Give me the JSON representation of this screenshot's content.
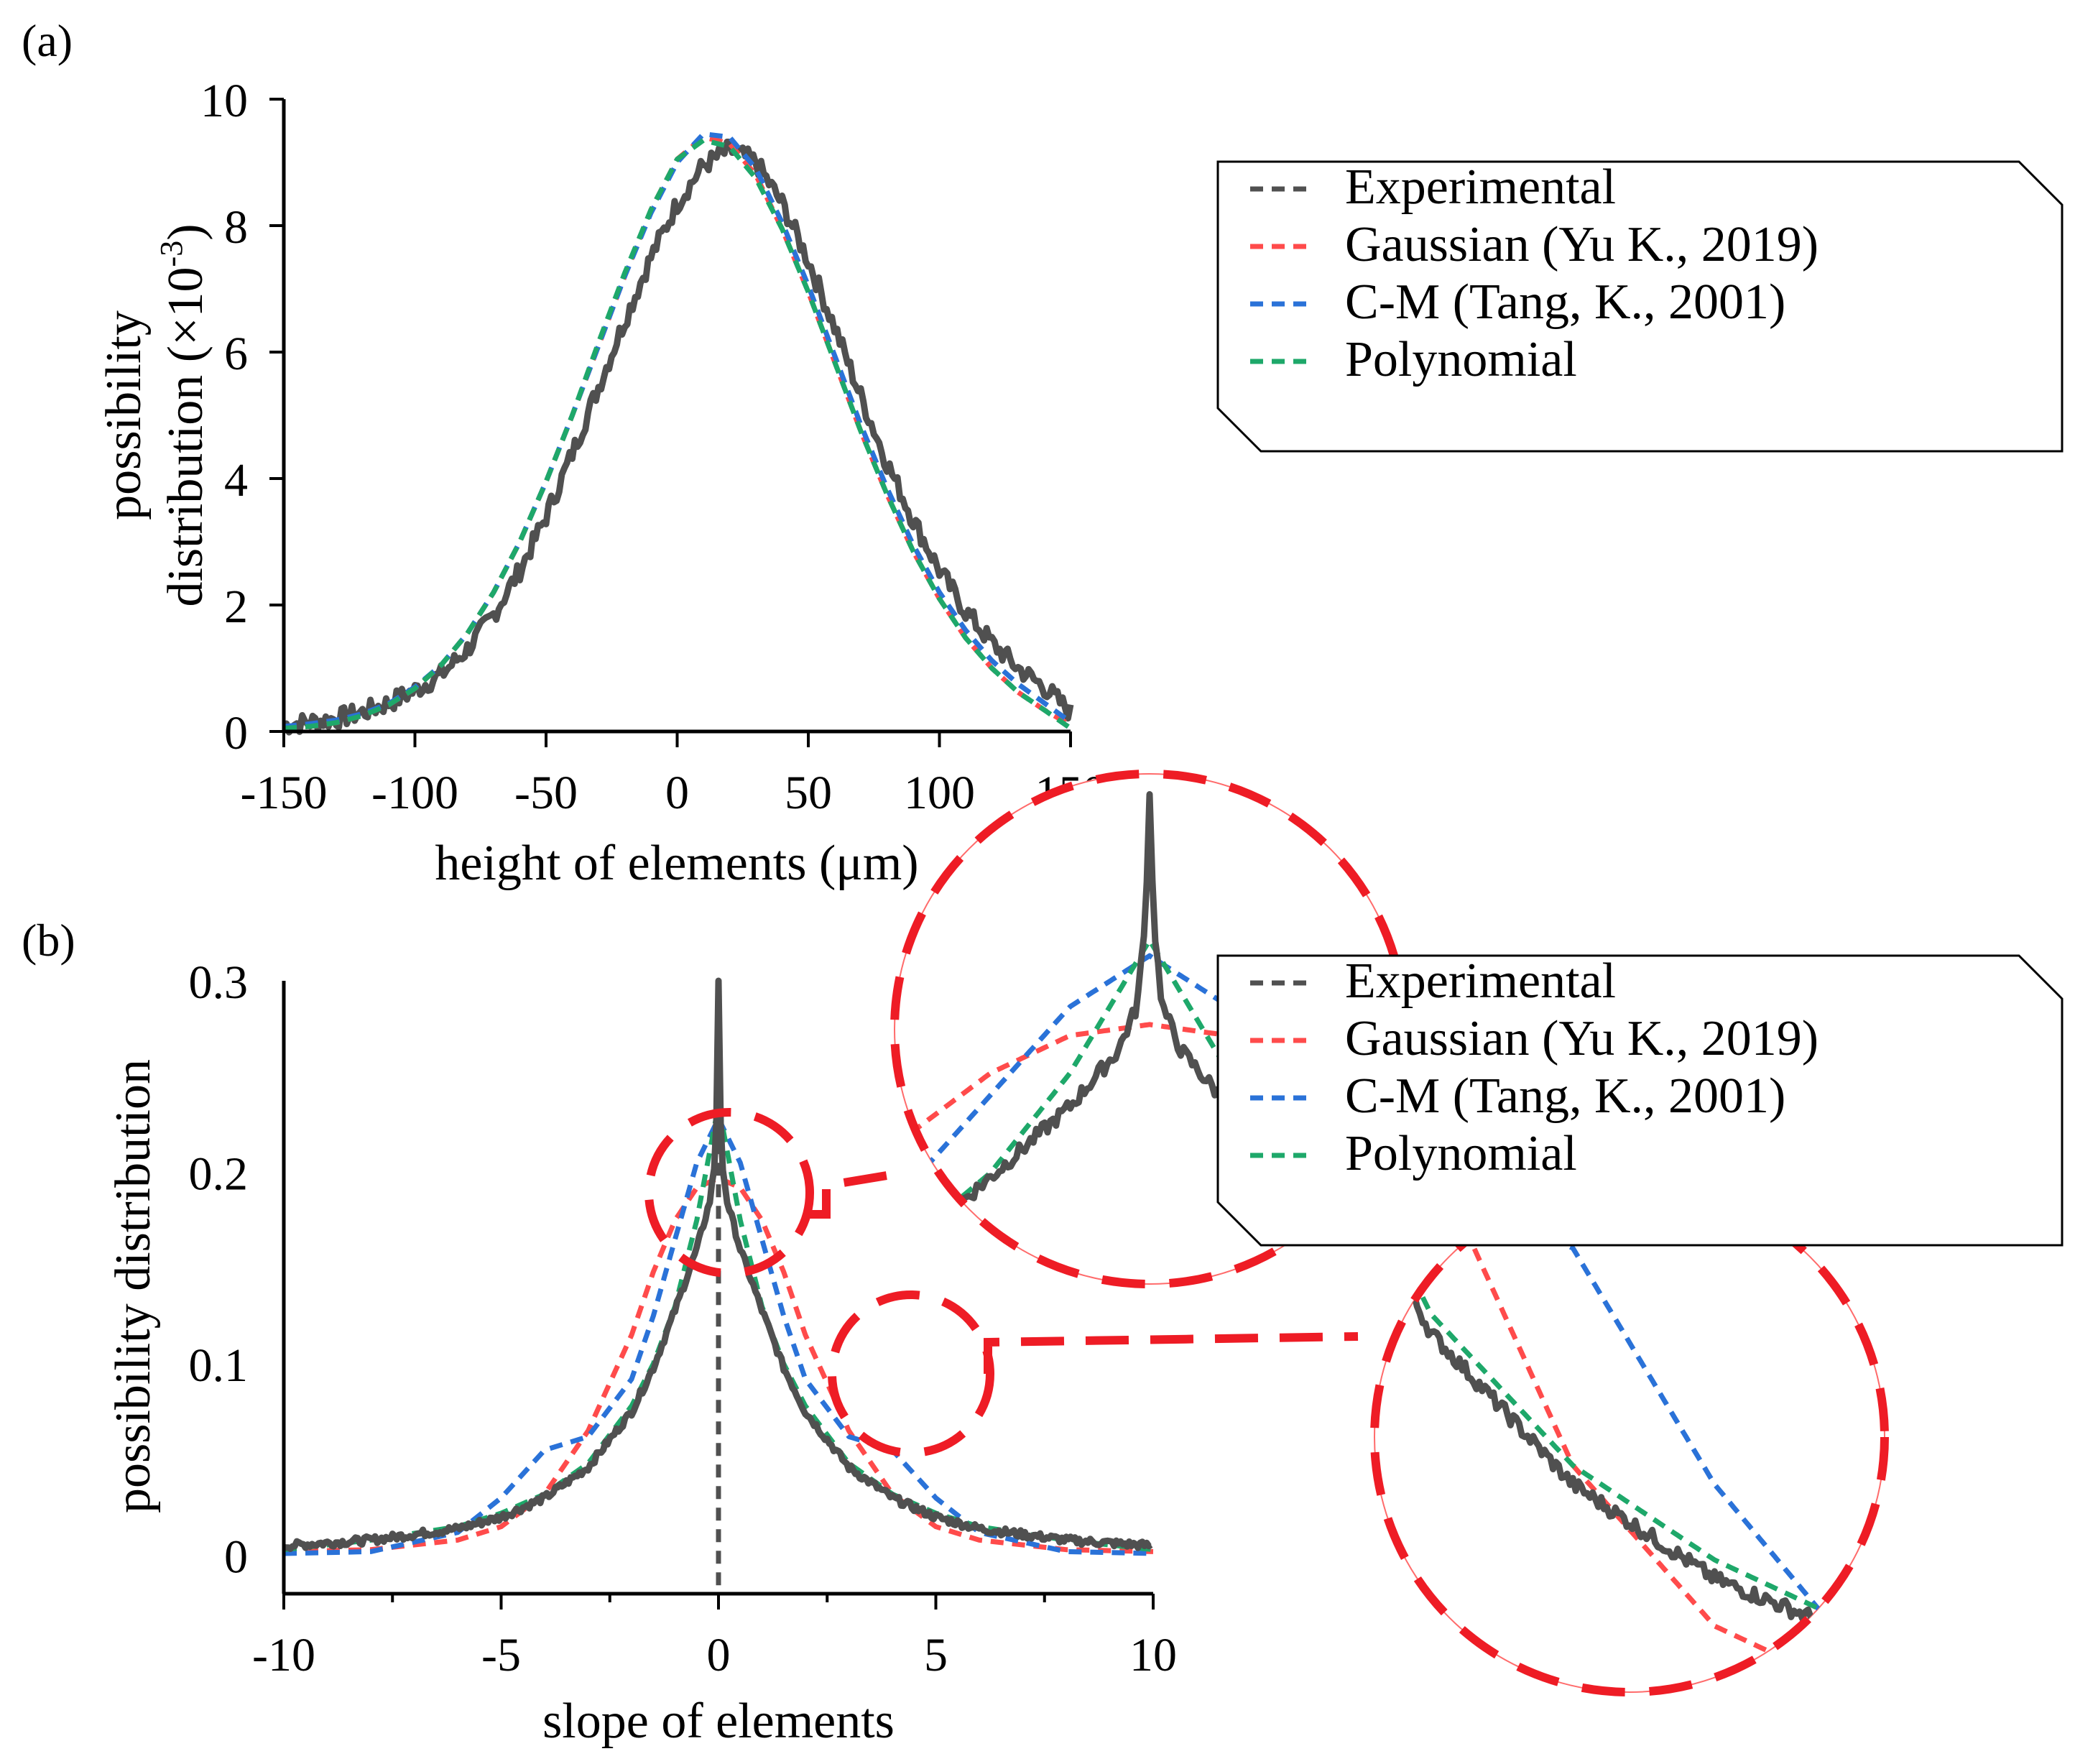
{
  "colors": {
    "Experimental": "#505050",
    "Gaussian": "#ff4b4b",
    "C-M": "#2a72d8",
    "Polynomial": "#1ea86a",
    "zoom": "#ee1c25"
  },
  "legend": [
    {
      "name": "Experimental",
      "label": "Experimental",
      "key": "Experimental"
    },
    {
      "name": "Gaussian",
      "label": "Gaussian (Yu K., 2019)",
      "key": "Gaussian"
    },
    {
      "name": "C-M",
      "label": "C-M (Tang, K., 2001)",
      "key": "C-M"
    },
    {
      "name": "Polynomial",
      "label": "Polynomial",
      "key": "Polynomial"
    }
  ],
  "chart_data": [
    {
      "panel": "(a)",
      "type": "line",
      "xlabel": "height of elements (μm)",
      "ylabel_line1": "possibility",
      "ylabel_line2": "distribution (×10",
      "ylabel_exp": "-3",
      "ylabel_close": ")",
      "xlim": [
        -150,
        150
      ],
      "ylim": [
        0,
        10
      ],
      "xticks": [
        -150,
        -100,
        -50,
        0,
        50,
        100,
        150
      ],
      "yticks": [
        0,
        2,
        4,
        6,
        8,
        10
      ],
      "x_step": 10,
      "x_start": -150,
      "series": [
        {
          "name": "Experimental",
          "values": [
            0.1,
            0.15,
            0.2,
            0.3,
            0.45,
            0.65,
            0.9,
            1.3,
            1.85,
            2.55,
            3.4,
            4.4,
            5.45,
            6.5,
            7.5,
            8.35,
            8.95,
            9.2,
            9.0,
            8.35,
            7.45,
            6.4,
            5.3,
            4.25,
            3.35,
            2.55,
            1.9,
            1.4,
            1.0,
            0.7,
            0.3
          ]
        },
        {
          "name": "Gaussian",
          "values": [
            0.05,
            0.08,
            0.14,
            0.25,
            0.42,
            0.68,
            1.05,
            1.55,
            2.2,
            3.0,
            3.95,
            5.0,
            6.1,
            7.2,
            8.25,
            9.05,
            9.4,
            9.3,
            8.8,
            7.95,
            6.95,
            5.85,
            4.75,
            3.75,
            2.85,
            2.1,
            1.48,
            1.0,
            0.62,
            0.34,
            0.1
          ]
        },
        {
          "name": "C-M",
          "values": [
            0.08,
            0.12,
            0.18,
            0.28,
            0.44,
            0.7,
            1.05,
            1.55,
            2.2,
            3.0,
            3.95,
            5.0,
            6.1,
            7.2,
            8.2,
            9.0,
            9.45,
            9.4,
            8.9,
            8.05,
            7.05,
            5.95,
            4.85,
            3.85,
            2.95,
            2.2,
            1.6,
            1.12,
            0.75,
            0.45,
            0.15
          ]
        },
        {
          "name": "Polynomial",
          "values": [
            0.05,
            0.08,
            0.14,
            0.25,
            0.42,
            0.68,
            1.05,
            1.55,
            2.2,
            3.0,
            3.95,
            5.0,
            6.15,
            7.25,
            8.25,
            9.05,
            9.35,
            9.25,
            8.75,
            7.95,
            6.95,
            5.85,
            4.75,
            3.75,
            2.85,
            2.1,
            1.48,
            1.0,
            0.62,
            0.34,
            0.05
          ]
        }
      ]
    },
    {
      "panel": "(b)",
      "type": "line",
      "xlabel": "slope of elements",
      "ylabel": "possibility distribution",
      "xlim": [
        -10,
        10
      ],
      "ylim": [
        -0.02,
        0.3
      ],
      "xticks": [
        -10,
        -5,
        0,
        5,
        10
      ],
      "xtick_labels": [
        "-10",
        "-5",
        "0",
        "5",
        "10"
      ],
      "yticks": [
        0,
        0.1,
        0.2,
        0.3
      ],
      "ytick_labels": [
        "0",
        "0.1",
        "0.2",
        "0.3"
      ],
      "series": [
        {
          "name": "Experimental",
          "x": [
            -10,
            -8,
            -6,
            -5,
            -4,
            -3,
            -2,
            -1.5,
            -1,
            -0.5,
            -0.2,
            -0.08,
            -0.03,
            0,
            0.03,
            0.08,
            0.2,
            0.5,
            1,
            1.5,
            2,
            3,
            4,
            5,
            6,
            8,
            10
          ],
          "values": [
            0.005,
            0.008,
            0.014,
            0.02,
            0.03,
            0.046,
            0.075,
            0.098,
            0.128,
            0.16,
            0.185,
            0.205,
            0.24,
            0.3,
            0.24,
            0.205,
            0.185,
            0.16,
            0.128,
            0.098,
            0.075,
            0.046,
            0.03,
            0.02,
            0.014,
            0.008,
            0.005
          ]
        },
        {
          "name": "Gaussian",
          "x": [
            -10,
            -8,
            -6,
            -5,
            -4,
            -3,
            -2,
            -1.5,
            -1,
            -0.5,
            0,
            0.5,
            1,
            1.5,
            2,
            3,
            4,
            5,
            6,
            8,
            10
          ],
          "values": [
            0.002,
            0.003,
            0.008,
            0.015,
            0.032,
            0.065,
            0.115,
            0.148,
            0.175,
            0.192,
            0.197,
            0.192,
            0.175,
            0.148,
            0.115,
            0.065,
            0.032,
            0.015,
            0.008,
            0.003,
            0.002
          ]
        },
        {
          "name": "C-M",
          "x": [
            -10,
            -8,
            -6,
            -5,
            -4,
            -3,
            -2,
            -1.5,
            -1,
            -0.5,
            0,
            0.5,
            1,
            1.5,
            2,
            3,
            4,
            5,
            6,
            8,
            10
          ],
          "values": [
            0.001,
            0.002,
            0.012,
            0.03,
            0.055,
            0.062,
            0.092,
            0.125,
            0.165,
            0.205,
            0.228,
            0.205,
            0.165,
            0.125,
            0.092,
            0.062,
            0.055,
            0.03,
            0.012,
            0.002,
            0.001
          ]
        },
        {
          "name": "Polynomial",
          "x": [
            -10,
            -8,
            -6,
            -5,
            -4,
            -3,
            -2,
            -1.5,
            -1,
            -0.5,
            0,
            0.5,
            1,
            1.5,
            2,
            3,
            4,
            5,
            6,
            8,
            10
          ],
          "values": [
            0.003,
            0.008,
            0.015,
            0.022,
            0.032,
            0.048,
            0.078,
            0.1,
            0.13,
            0.175,
            0.235,
            0.175,
            0.13,
            0.1,
            0.078,
            0.048,
            0.032,
            0.022,
            0.015,
            0.008,
            0.003
          ]
        }
      ]
    }
  ]
}
